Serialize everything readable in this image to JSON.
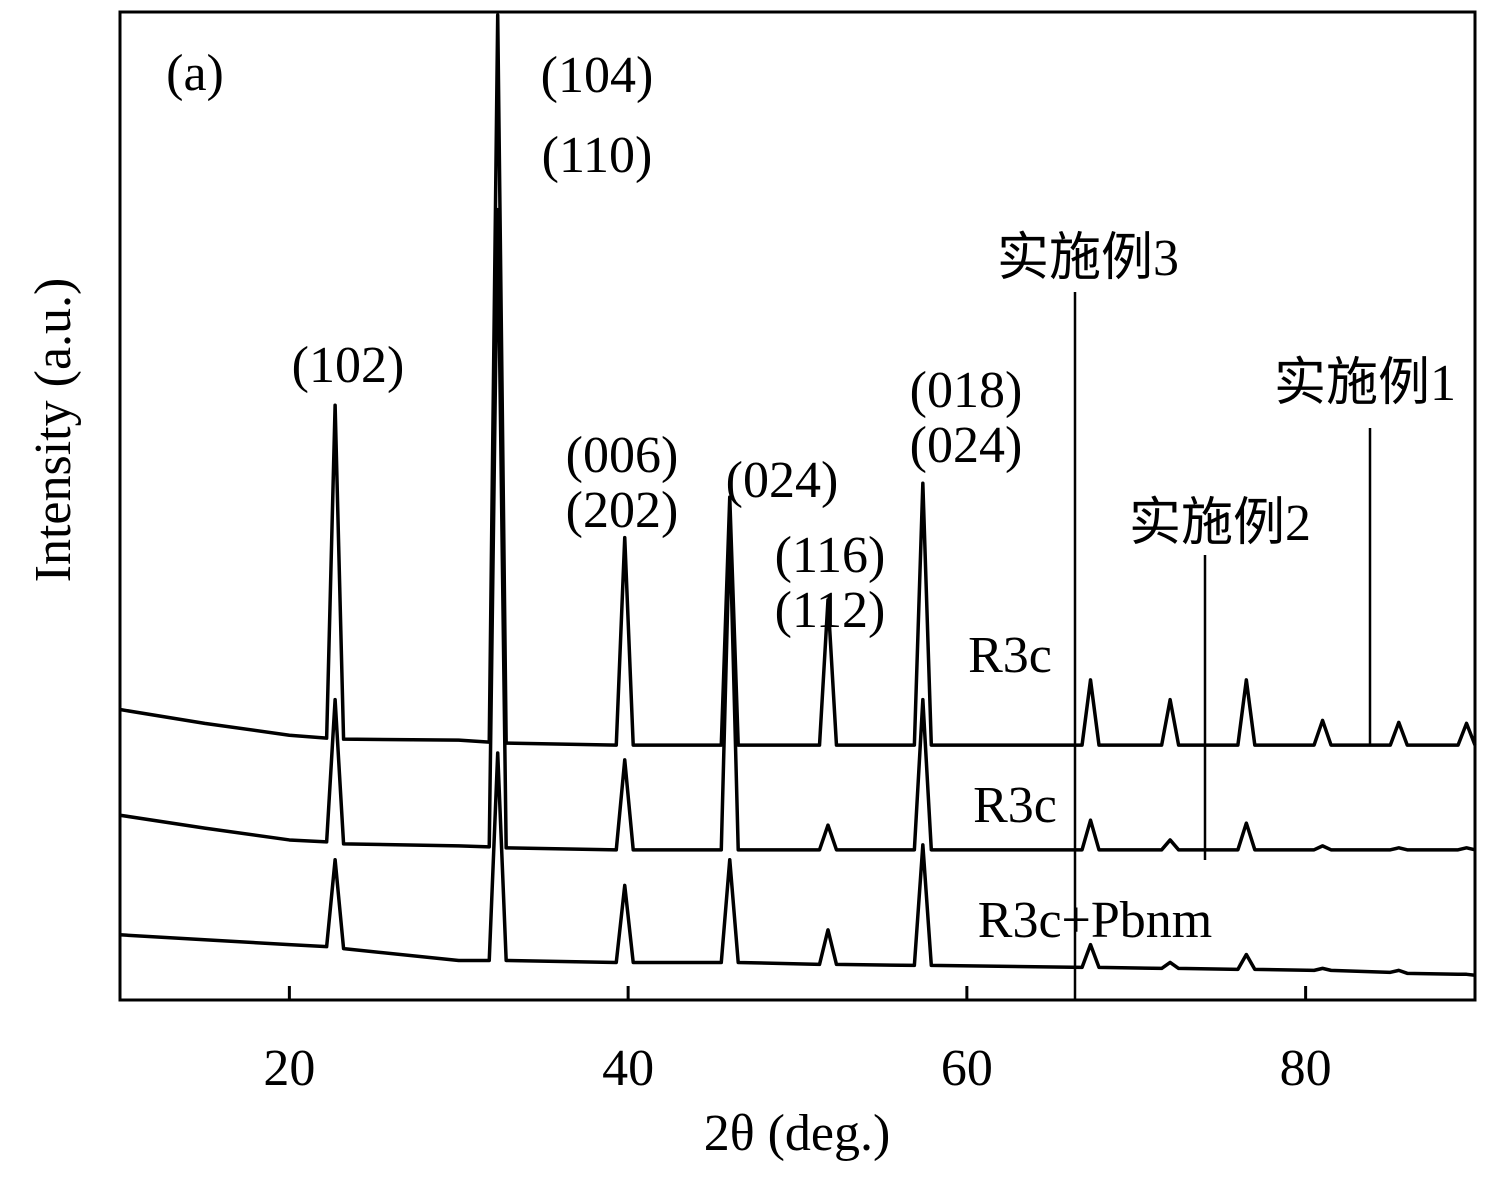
{
  "chart_data": {
    "type": "line",
    "x_label": "2θ (deg.)",
    "y_label": "Intensity (a.u.)",
    "xlim": [
      10,
      90
    ],
    "xticks": [
      20,
      40,
      60,
      80
    ],
    "ylim": [
      0,
      100
    ],
    "x": [
      10,
      15,
      20,
      22.2,
      22.7,
      23.2,
      30,
      31.8,
      32.3,
      32.8,
      39.3,
      39.8,
      40.3,
      45.5,
      46,
      46.5,
      51.3,
      51.8,
      52.3,
      56.9,
      57.4,
      57.9,
      66.8,
      67.3,
      67.8,
      71.5,
      72,
      72.5,
      76,
      76.5,
      77,
      80.5,
      81,
      81.5,
      85,
      85.5,
      86,
      89,
      89.5,
      90
    ],
    "series": [
      {
        "name": "实施例1",
        "color": "#000000",
        "values": [
          29.4,
          28,
          26.8,
          26.5,
          60.2,
          26.4,
          26.3,
          26.1,
          99.7,
          26,
          25.8,
          46.8,
          25.8,
          25.8,
          50.9,
          25.8,
          25.8,
          40.5,
          25.8,
          25.8,
          52.3,
          25.8,
          25.8,
          32.4,
          25.8,
          25.8,
          30.4,
          25.8,
          25.8,
          32.4,
          25.8,
          25.8,
          28.3,
          25.8,
          25.8,
          28.1,
          25.8,
          25.8,
          28,
          25.8
        ]
      },
      {
        "name": "实施例2",
        "color": "#000000",
        "values": [
          18.7,
          17.4,
          16.2,
          16,
          30.4,
          15.8,
          15.6,
          15.5,
          80,
          15.4,
          15.2,
          24.3,
          15.2,
          15.2,
          48,
          15.2,
          15.2,
          17.7,
          15.2,
          15.2,
          30.4,
          15.2,
          15.2,
          18.2,
          15.2,
          15.2,
          16.2,
          15.2,
          15.2,
          17.9,
          15.2,
          15.2,
          15.6,
          15.2,
          15.2,
          15.4,
          15.2,
          15.2,
          15.4,
          15.2
        ]
      },
      {
        "name": "实施例3",
        "color": "#000000",
        "values": [
          6.6,
          6.1,
          5.6,
          5.4,
          14.2,
          5.2,
          4,
          4,
          25,
          4,
          3.8,
          11.6,
          3.8,
          3.8,
          14.2,
          3.8,
          3.6,
          7.1,
          3.6,
          3.5,
          15.7,
          3.5,
          3.3,
          5.6,
          3.3,
          3.2,
          3.8,
          3.2,
          3.1,
          4.6,
          3.1,
          3,
          3.2,
          3,
          2.8,
          3,
          2.7,
          2.6,
          2.6,
          2.5
        ]
      }
    ],
    "annotations": [
      "(a)",
      "(104)",
      "(110)",
      "(102)",
      "(006)",
      "(202)",
      "(024)",
      "(116)",
      "(112)",
      "(018)",
      "(024)",
      "R3c",
      "R3c",
      "R3c+Pbnm"
    ]
  }
}
